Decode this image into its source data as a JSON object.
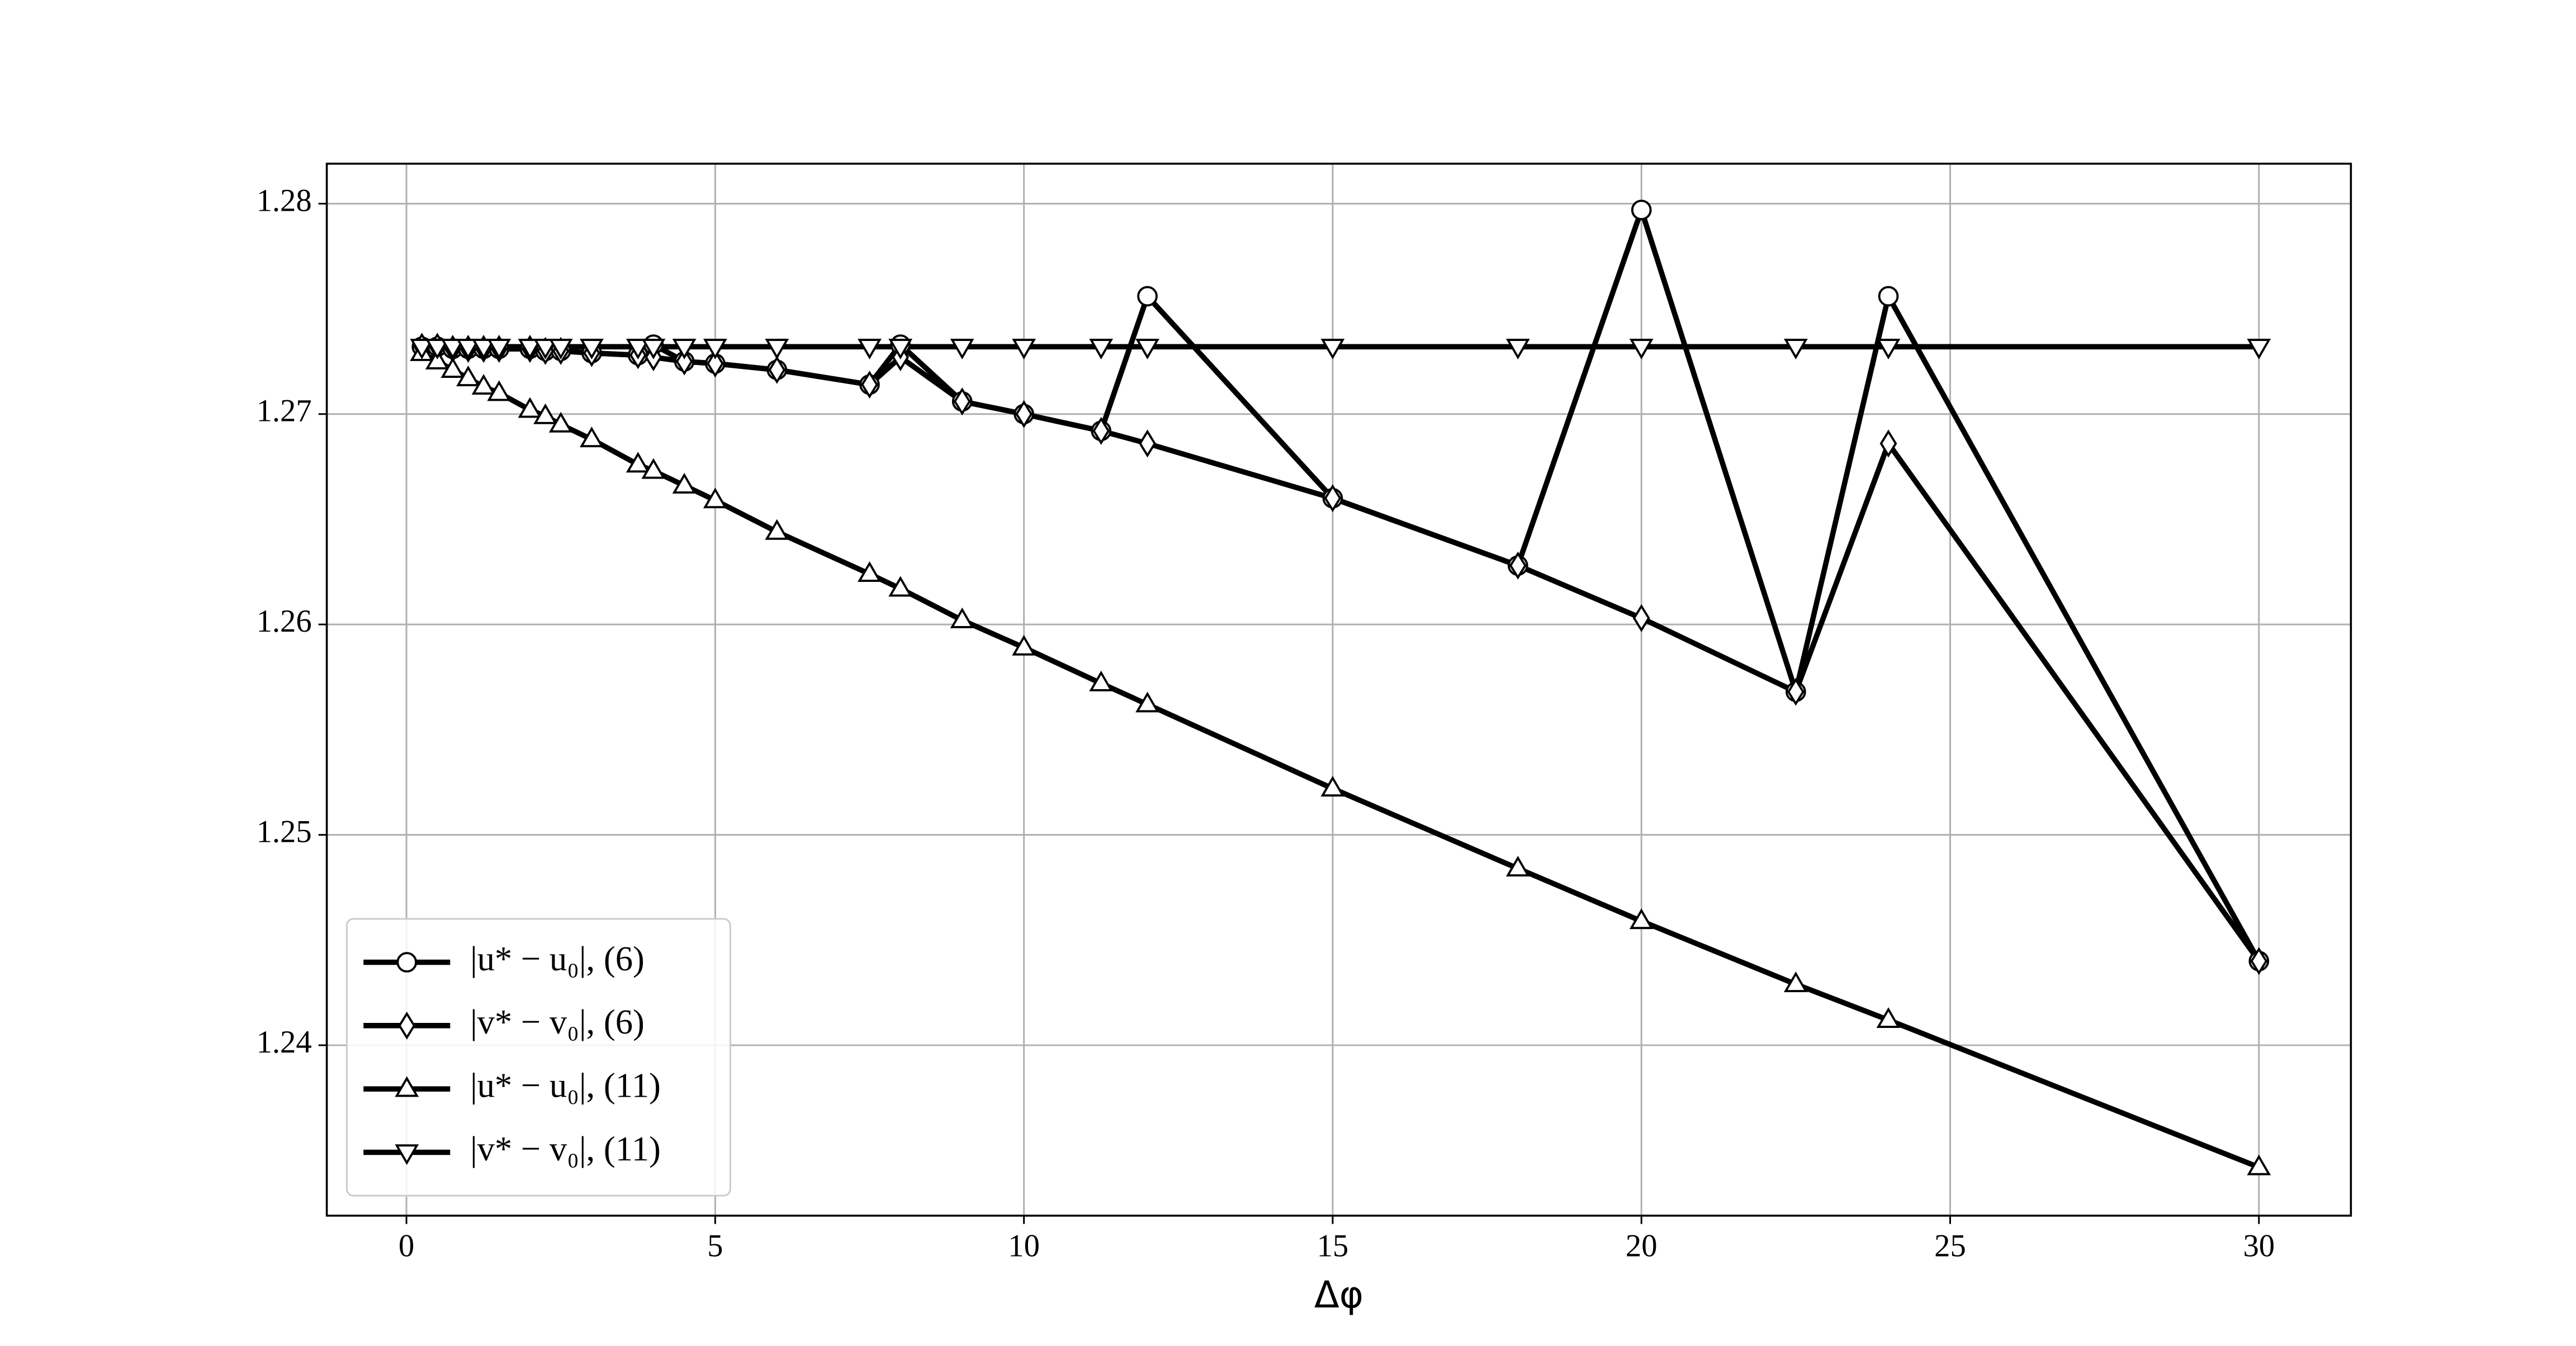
{
  "chart_data": {
    "type": "line",
    "xlabel": "Δφ",
    "x": [
      0.25,
      0.5,
      0.75,
      1,
      1.25,
      1.5,
      2,
      2.25,
      2.5,
      3,
      3.75,
      4,
      4.5,
      5,
      6,
      7.5,
      8,
      9,
      10,
      11.25,
      12,
      15,
      18,
      20,
      22.5,
      24,
      30
    ],
    "series": [
      {
        "name": "|u* − u₀|, (6)",
        "color": "#000000",
        "marker": "circle",
        "values": [
          1.2732,
          1.2732,
          1.2731,
          1.2731,
          1.2731,
          1.2731,
          1.2731,
          1.273,
          1.273,
          1.2729,
          1.2728,
          1.2733,
          1.2725,
          1.2724,
          1.2721,
          1.2714,
          1.2733,
          1.2706,
          1.27,
          1.2692,
          1.2756,
          1.266,
          1.2628,
          1.2797,
          1.2568,
          1.2756,
          1.244
        ]
      },
      {
        "name": "|v* − v₀|, (6)",
        "color": "#000000",
        "marker": "diamond",
        "values": [
          1.2732,
          1.2732,
          1.2731,
          1.2731,
          1.2731,
          1.2731,
          1.2731,
          1.273,
          1.273,
          1.2729,
          1.2728,
          1.2727,
          1.2725,
          1.2724,
          1.2721,
          1.2714,
          1.2727,
          1.2706,
          1.27,
          1.2692,
          1.2686,
          1.266,
          1.2628,
          1.2603,
          1.2568,
          1.2686,
          1.244
        ]
      },
      {
        "name": "|u* − u₀|, (11)",
        "color": "#000000",
        "marker": "triangle-up",
        "values": [
          1.2729,
          1.2725,
          1.2721,
          1.2717,
          1.2713,
          1.271,
          1.2702,
          1.2699,
          1.2695,
          1.2688,
          1.2676,
          1.2673,
          1.2666,
          1.2659,
          1.2644,
          1.2624,
          1.2617,
          1.2602,
          1.2589,
          1.2572,
          1.2562,
          1.2522,
          1.2484,
          1.2459,
          1.2429,
          1.2412,
          1.2342
        ]
      },
      {
        "name": "|v* − v₀|, (11)",
        "color": "#000000",
        "marker": "triangle-down",
        "values": [
          1.2732,
          1.2732,
          1.2732,
          1.2732,
          1.2732,
          1.2732,
          1.2732,
          1.2732,
          1.2732,
          1.2732,
          1.2732,
          1.2732,
          1.2732,
          1.2732,
          1.2732,
          1.2732,
          1.2732,
          1.2732,
          1.2732,
          1.2732,
          1.2732,
          1.2732,
          1.2732,
          1.2732,
          1.2732,
          1.2732,
          1.2732
        ]
      }
    ],
    "xlim": [
      -1.29,
      31.49
    ],
    "xticks": [
      0,
      5,
      10,
      15,
      20,
      25,
      30
    ],
    "ylim": [
      1.2319,
      1.2819
    ],
    "yticks": [
      1.24,
      1.25,
      1.26,
      1.27,
      1.28
    ],
    "grid": true,
    "legend": "lower left"
  }
}
